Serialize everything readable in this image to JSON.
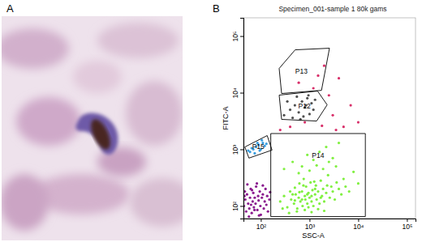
{
  "panel_labels": [
    "A",
    "B"
  ],
  "chart_data": {
    "type": "scatter",
    "title": "Specimen_001-sample 1 80k gams",
    "x_label": "SSC-A",
    "y_label": "FITC-A",
    "log": true,
    "grid": false,
    "xlim": [
      44,
      150000
    ],
    "ylim": [
      60,
      210000
    ],
    "xticks": [
      {
        "value": 100,
        "label": "10²"
      },
      {
        "value": 1000,
        "label": "10³"
      },
      {
        "value": 10000,
        "label": "10⁴"
      },
      {
        "value": 100000,
        "label": "10⁵"
      }
    ],
    "yticks": [
      {
        "value": 100,
        "label": "10²"
      },
      {
        "value": 1000,
        "label": "10³"
      },
      {
        "value": 10000,
        "label": "10⁴"
      },
      {
        "value": 100000,
        "label": "10⁵"
      }
    ],
    "series": [
      {
        "color": "#8a1a8e",
        "x": [
          45,
          48,
          50,
          52,
          55,
          58,
          60,
          62,
          65,
          68,
          70,
          72,
          75,
          78,
          80,
          85,
          88,
          90,
          95,
          98,
          100,
          105,
          110,
          115,
          120,
          125,
          130,
          135,
          140,
          150,
          155,
          47,
          53,
          57,
          66,
          83,
          92,
          110,
          46,
          63,
          74
        ],
        "y": [
          100,
          130,
          80,
          160,
          110,
          90,
          140,
          200,
          75,
          120,
          170,
          95,
          140,
          110,
          220,
          85,
          150,
          125,
          180,
          100,
          70,
          140,
          160,
          90,
          120,
          200,
          105,
          150,
          80,
          130,
          175,
          180,
          240,
          65,
          190,
          250,
          68,
          230,
          150,
          105,
          85
        ]
      },
      {
        "color": "#80f040",
        "x": [
          250,
          300,
          350,
          400,
          420,
          480,
          500,
          520,
          560,
          600,
          620,
          650,
          700,
          720,
          760,
          800,
          820,
          850,
          900,
          950,
          1000,
          1050,
          1100,
          1150,
          1200,
          1300,
          1350,
          1400,
          1500,
          1600,
          1700,
          1800,
          1900,
          2000,
          2200,
          2400,
          2600,
          2800,
          3000,
          3300,
          3600,
          4000,
          4500,
          5000,
          5500,
          6500,
          8000,
          10000,
          300,
          450,
          700,
          900,
          1200,
          1600,
          2200,
          3000,
          4000,
          600,
          1000,
          1400,
          1900,
          2500,
          3500,
          280,
          380,
          550,
          800,
          1100,
          1500,
          2000,
          700,
          900,
          1100,
          1300,
          750,
          950,
          1250,
          1700,
          2300,
          450,
          500,
          620
        ],
        "y": [
          120,
          150,
          95,
          180,
          130,
          110,
          210,
          160,
          90,
          140,
          250,
          120,
          180,
          100,
          300,
          150,
          130,
          220,
          110,
          170,
          140,
          260,
          120,
          190,
          100,
          160,
          230,
          130,
          180,
          110,
          280,
          150,
          200,
          120,
          170,
          350,
          140,
          220,
          180,
          130,
          260,
          200,
          160,
          300,
          220,
          180,
          400,
          250,
          450,
          600,
          500,
          800,
          650,
          900,
          1100,
          700,
          1300,
          380,
          420,
          520,
          450,
          600,
          500,
          90,
          75,
          80,
          85,
          78,
          88,
          82,
          130,
          160,
          150,
          200,
          230,
          95,
          270,
          140,
          230,
          160,
          125,
          175
        ]
      },
      {
        "color": "#3a9ee0",
        "x": [
          60,
          70,
          80,
          90,
          100,
          110,
          75,
          95,
          120,
          65,
          85,
          105,
          130,
          55
        ],
        "y": [
          900,
          1000,
          1100,
          1200,
          1000,
          1300,
          850,
          950,
          1150,
          1050,
          1300,
          1450,
          1250,
          950
        ]
      },
      {
        "color": "#505050",
        "x": [
          300,
          400,
          500,
          600,
          700,
          800,
          900,
          1000,
          1100,
          1200,
          350,
          450,
          750,
          950,
          1300,
          550,
          650,
          850
        ],
        "y": [
          4000,
          5000,
          6000,
          4500,
          7000,
          5500,
          8000,
          4200,
          6500,
          5000,
          7000,
          3600,
          3800,
          9000,
          7500,
          8500,
          3400,
          6000
        ]
      },
      {
        "color": "#d8306a",
        "x": [
          1500,
          2500,
          800,
          3000,
          5000,
          1200,
          400,
          7000,
          2000,
          600,
          10000,
          4000,
          250,
          1800,
          3500
        ],
        "y": [
          20000,
          9000,
          3000,
          4000,
          2500,
          12000,
          2500,
          6000,
          30000,
          15000,
          3000,
          18000,
          2200,
          2600,
          2200
        ]
      }
    ],
    "gates": [
      {
        "label": "P13",
        "points": [
          [
            238,
            26800
          ],
          [
            507,
            57100
          ],
          [
            2570,
            61000
          ],
          [
            1760,
            11000
          ],
          [
            267,
            9680
          ]
        ]
      },
      {
        "label": "P12",
        "points": [
          [
            238,
            9060
          ],
          [
            1460,
            10700
          ],
          [
            2300,
            6100
          ],
          [
            1400,
            3160
          ],
          [
            267,
            3380
          ]
        ]
      },
      {
        "label": "P15",
        "points": [
          [
            47,
            1100
          ],
          [
            135,
            1750
          ],
          [
            170,
            970
          ],
          [
            57,
            700
          ]
        ]
      },
      {
        "label": "P14",
        "points": [
          [
            160,
            1900
          ],
          [
            14000,
            1900
          ],
          [
            14000,
            65
          ],
          [
            160,
            65
          ]
        ]
      }
    ]
  }
}
